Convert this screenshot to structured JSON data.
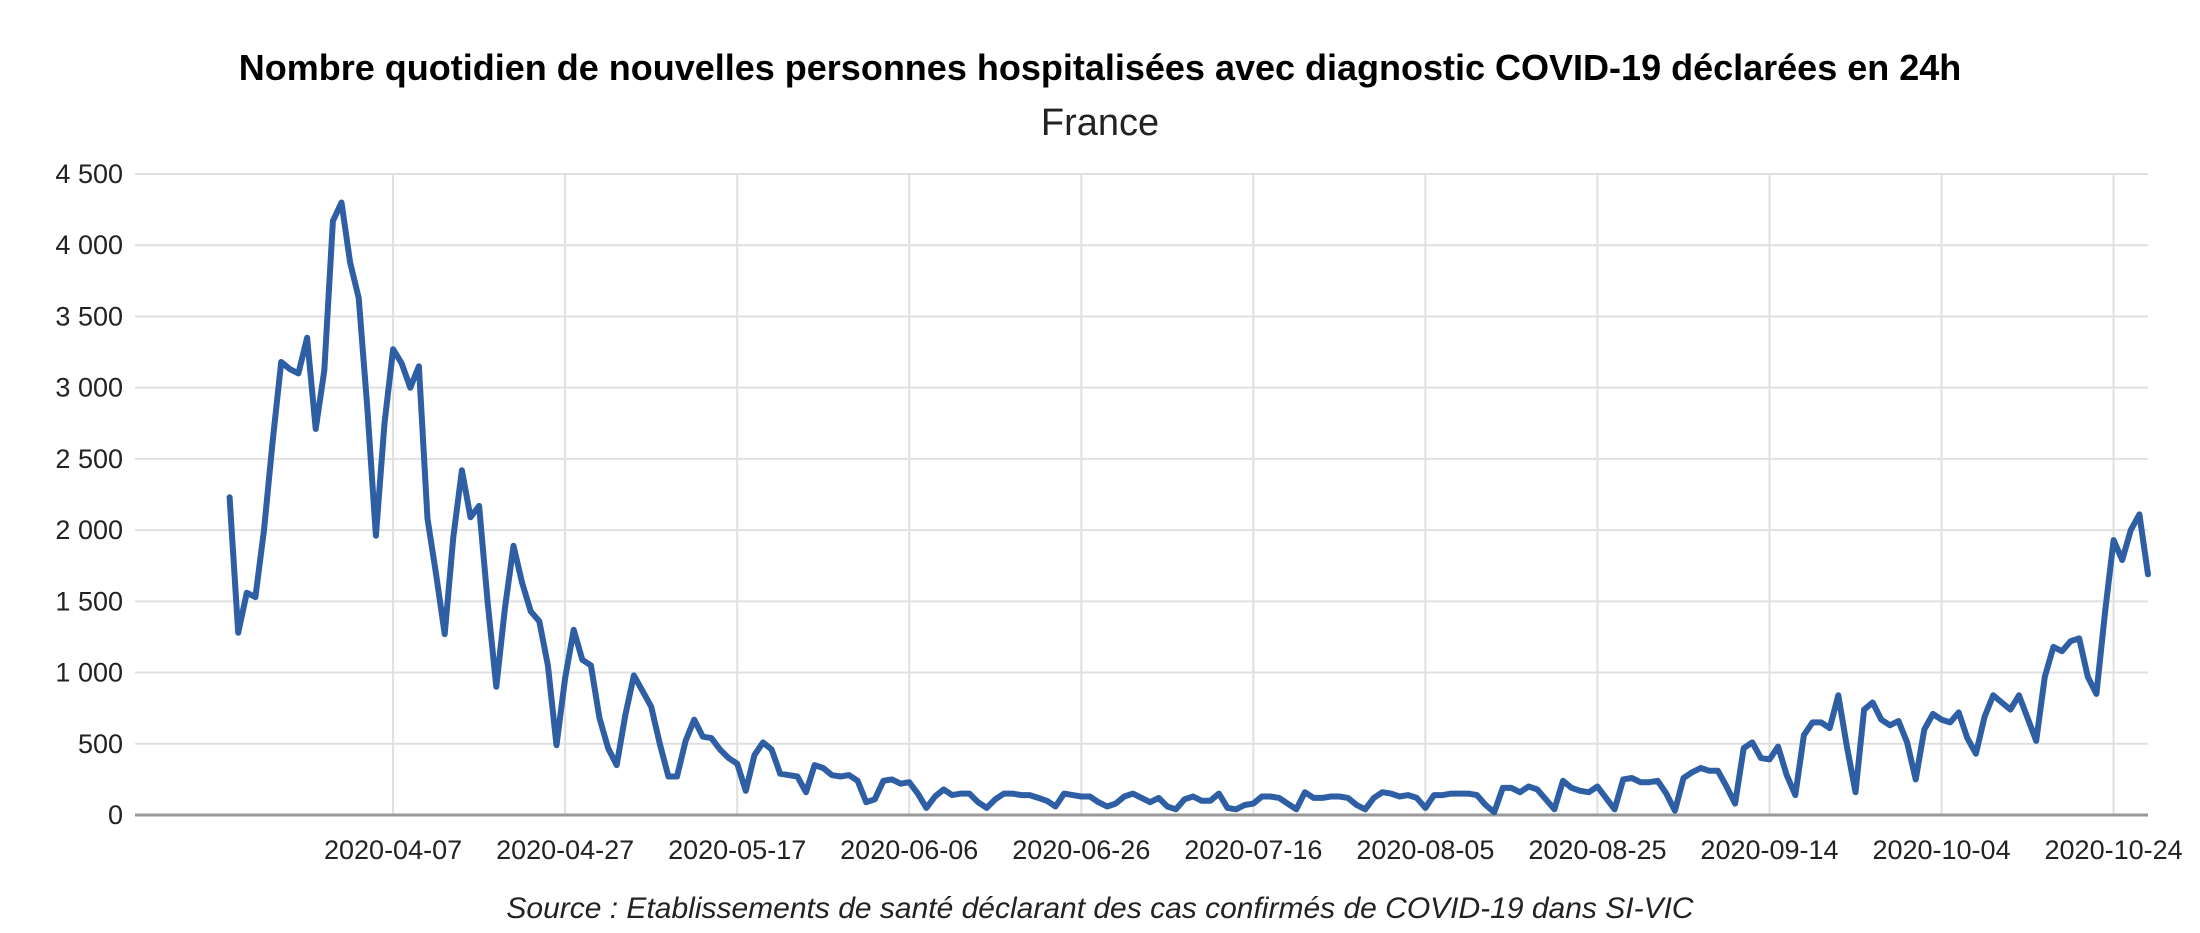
{
  "chart_data": {
    "type": "line",
    "title": "Nombre quotidien de nouvelles personnes hospitalisées avec diagnostic COVID-19 déclarées en 24h",
    "subtitle": "France",
    "source": "Source : Etablissements de santé déclarant des cas confirmés de COVID-19 dans SI-VIC",
    "xlabel": "",
    "ylabel": "",
    "x_start": "2020-03-19",
    "x_end": "2020-10-24",
    "xticks": [
      "2020-04-07",
      "2020-04-27",
      "2020-05-17",
      "2020-06-06",
      "2020-06-26",
      "2020-07-16",
      "2020-08-05",
      "2020-08-25",
      "2020-09-14",
      "2020-10-04",
      "2020-10-24"
    ],
    "yticks": [
      0,
      500,
      1000,
      1500,
      2000,
      2500,
      3000,
      3500,
      4000,
      4500
    ],
    "ytick_labels": [
      "0",
      "500",
      "1 000",
      "1 500",
      "2 000",
      "2 500",
      "3 000",
      "3 500",
      "4 000",
      "4 500"
    ],
    "ylim": [
      0,
      4500
    ],
    "grid": true,
    "colors": {
      "line": "#2e5ea3",
      "grid": "#e0e0e0",
      "axis": "#999999"
    },
    "series": [
      {
        "values": [
          2230,
          1280,
          1560,
          1530,
          2000,
          2620,
          3180,
          3130,
          3100,
          3350,
          2710,
          3120,
          4170,
          4300,
          3880,
          3630,
          2860,
          1960,
          2750,
          3270,
          3170,
          3000,
          3150,
          2080,
          1690,
          1270,
          1950,
          2420,
          2090,
          2170,
          1490,
          900,
          1450,
          1890,
          1630,
          1430,
          1360,
          1050,
          490,
          960,
          1300,
          1090,
          1050,
          680,
          470,
          350,
          700,
          980,
          870,
          760,
          500,
          270,
          270,
          520,
          670,
          550,
          540,
          460,
          400,
          360,
          170,
          420,
          510,
          460,
          290,
          280,
          270,
          160,
          350,
          330,
          280,
          270,
          280,
          240,
          90,
          110,
          240,
          250,
          220,
          230,
          150,
          50,
          130,
          180,
          140,
          150,
          150,
          90,
          50,
          110,
          150,
          150,
          140,
          140,
          120,
          100,
          60,
          150,
          140,
          130,
          130,
          90,
          60,
          80,
          130,
          150,
          120,
          90,
          120,
          60,
          40,
          110,
          130,
          100,
          100,
          150,
          50,
          40,
          70,
          80,
          130,
          130,
          120,
          80,
          40,
          160,
          120,
          120,
          130,
          130,
          120,
          70,
          40,
          120,
          160,
          150,
          130,
          140,
          120,
          50,
          140,
          140,
          150,
          150,
          150,
          140,
          70,
          20,
          190,
          190,
          160,
          200,
          180,
          110,
          40,
          240,
          190,
          170,
          160,
          200,
          120,
          40,
          250,
          260,
          230,
          230,
          240,
          150,
          30,
          260,
          300,
          330,
          310,
          310,
          200,
          80,
          470,
          510,
          400,
          390,
          480,
          280,
          140,
          560,
          650,
          650,
          610,
          840,
          480,
          160,
          740,
          790,
          670,
          630,
          660,
          510,
          250,
          600,
          710,
          670,
          650,
          720,
          540,
          430,
          690,
          840,
          790,
          740,
          840,
          680,
          520,
          970,
          1180,
          1150,
          1220,
          1240,
          970,
          850,
          1420,
          1930,
          1790,
          2000,
          2110,
          1690
        ]
      }
    ]
  }
}
